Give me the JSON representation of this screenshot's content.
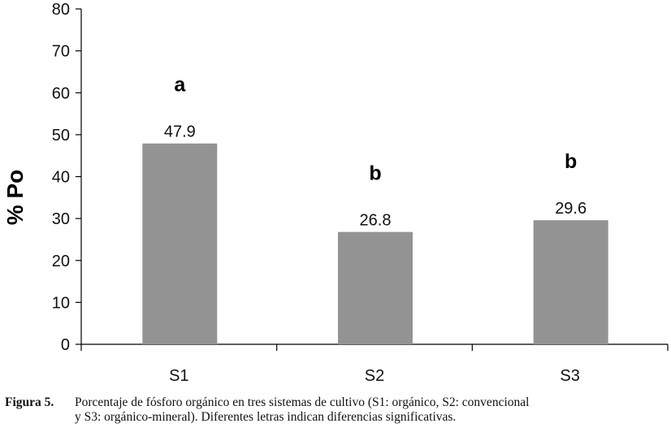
{
  "chart_data": {
    "type": "bar",
    "categories": [
      "S1",
      "S2",
      "S3"
    ],
    "values": [
      47.9,
      26.8,
      29.6
    ],
    "data_labels": [
      "47.9",
      "26.8",
      "29.6"
    ],
    "significance_letters": [
      "a",
      "b",
      "b"
    ],
    "ylabel": "% Po",
    "xlabel": "",
    "ylim": [
      0,
      80
    ],
    "yticks": [
      "0",
      "10",
      "20",
      "30",
      "40",
      "50",
      "60",
      "70",
      "80"
    ],
    "bar_color": "#939393",
    "grid": false
  },
  "caption": {
    "label": "Figura 5.",
    "line1": "Porcentaje de fósforo orgánico en tres sistemas de cultivo (S1: orgánico, S2: convencional",
    "line2": "y S3: orgánico-mineral). Diferentes letras indican diferencias significativas."
  }
}
